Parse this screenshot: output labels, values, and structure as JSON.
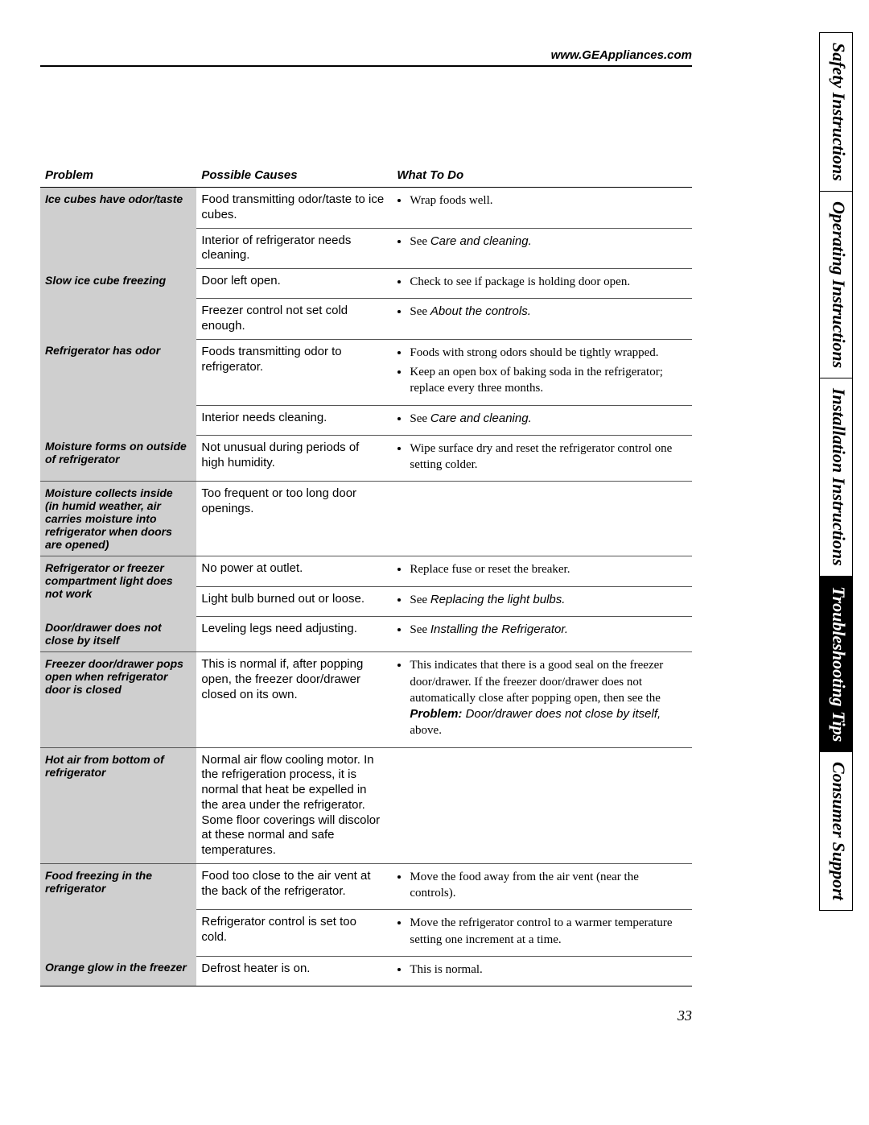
{
  "url": "www.GEAppliances.com",
  "page_number": "33",
  "side_tabs": [
    {
      "label": "Safety Instructions",
      "active": false
    },
    {
      "label": "Operating Instructions",
      "active": false
    },
    {
      "label": "Installation Instructions",
      "active": false
    },
    {
      "label": "Troubleshooting Tips",
      "active": true
    },
    {
      "label": "Consumer Support",
      "active": false
    }
  ],
  "headers": {
    "col1": "Problem",
    "col2": "Possible Causes",
    "col3": "What To Do"
  },
  "rows": [
    {
      "problem": "Ice cubes have odor/taste",
      "sub": [
        {
          "cause": "Food transmitting odor/taste to ice cubes.",
          "todo": [
            {
              "type": "plain",
              "text": "Wrap foods well."
            }
          ]
        },
        {
          "cause": "Interior of refrigerator needs cleaning.",
          "todo": [
            {
              "type": "see",
              "text": "See ",
              "ref": "Care and cleaning."
            }
          ]
        }
      ]
    },
    {
      "problem": "Slow ice cube freezing",
      "sub": [
        {
          "cause": "Door left open.",
          "todo": [
            {
              "type": "plain",
              "text": "Check to see if package is holding door open."
            }
          ]
        },
        {
          "cause": "Freezer control not set cold enough.",
          "todo": [
            {
              "type": "see",
              "text": "See ",
              "ref": "About the controls."
            }
          ]
        }
      ]
    },
    {
      "problem": "Refrigerator has odor",
      "sub": [
        {
          "cause": "Foods transmitting odor to refrigerator.",
          "todo": [
            {
              "type": "plain",
              "text": "Foods with strong odors should be tightly wrapped."
            },
            {
              "type": "plain",
              "text": "Keep an open box of baking soda in the refrigerator; replace every three months."
            }
          ]
        },
        {
          "cause": "Interior needs cleaning.",
          "todo": [
            {
              "type": "see",
              "text": "See ",
              "ref": "Care and cleaning."
            }
          ]
        }
      ]
    },
    {
      "problem": "Moisture forms on outside of refrigerator",
      "sub": [
        {
          "cause": "Not unusual during periods of high humidity.",
          "todo": [
            {
              "type": "plain",
              "text": "Wipe surface dry and reset the refrigerator control one setting colder."
            }
          ]
        }
      ]
    },
    {
      "problem": "Moisture collects inside (in humid weather, air carries moisture into refrigerator when doors are opened)",
      "sub": [
        {
          "cause": "Too frequent or too long door openings.",
          "todo": []
        }
      ]
    },
    {
      "problem": "Refrigerator or freezer compartment light does not work",
      "sub": [
        {
          "cause": "No power at outlet.",
          "todo": [
            {
              "type": "plain",
              "text": "Replace fuse or reset the breaker."
            }
          ]
        },
        {
          "cause": "Light bulb burned out or loose.",
          "todo": [
            {
              "type": "see",
              "text": "See ",
              "ref": "Replacing the light bulbs."
            }
          ]
        }
      ]
    },
    {
      "problem": "Door/drawer does not close by itself",
      "sub": [
        {
          "cause": "Leveling legs need adjusting.",
          "todo": [
            {
              "type": "see",
              "text": "See ",
              "ref": "Installing the Refrigerator."
            }
          ]
        }
      ]
    },
    {
      "problem": "Freezer door/drawer pops open when refrigerator door is closed",
      "sub": [
        {
          "cause": "This is normal if, after popping open, the freezer door/drawer closed on its own.",
          "todo": [
            {
              "type": "boldref",
              "text": "This indicates that there is a good seal on the freezer door/drawer. If the freezer door/drawer does not automatically close after popping open, then see the ",
              "boldlabel": "Problem:",
              "boldref": " Door/drawer does not close by itself, ",
              "tail": "above."
            }
          ]
        }
      ]
    },
    {
      "problem": "Hot air from bottom of refrigerator",
      "sub": [
        {
          "cause": "Normal air flow cooling motor. In the refrigeration process, it is normal that heat be expelled in the area under the refrigerator. Some floor coverings will discolor at these normal and safe temperatures.",
          "todo": []
        }
      ]
    },
    {
      "problem": "Food freezing in the refrigerator",
      "sub": [
        {
          "cause": "Food too close to the air vent at the back of the refrigerator.",
          "todo": [
            {
              "type": "plain",
              "text": "Move the food away from the air vent (near the controls)."
            }
          ]
        },
        {
          "cause": "Refrigerator control is set too cold.",
          "todo": [
            {
              "type": "plain",
              "text": "Move the refrigerator control to a warmer temperature setting one increment at a time."
            }
          ]
        }
      ]
    },
    {
      "problem": "Orange glow in the freezer",
      "sub": [
        {
          "cause": "Defrost heater is on.",
          "todo": [
            {
              "type": "plain",
              "text": "This is normal."
            }
          ]
        }
      ]
    }
  ]
}
